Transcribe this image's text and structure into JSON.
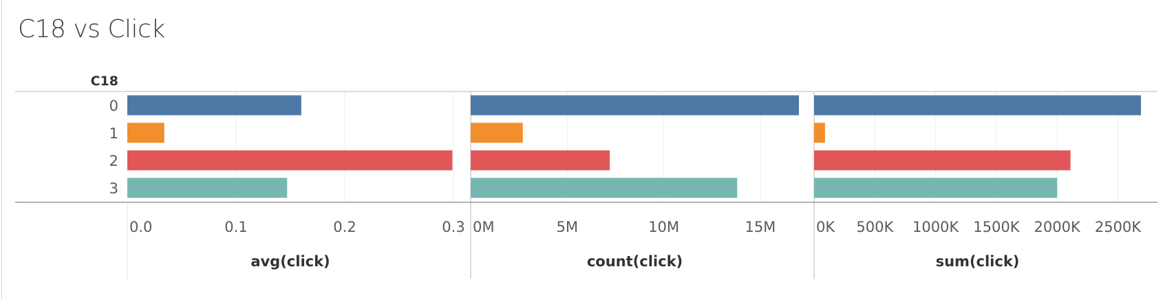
{
  "dashboard": {
    "title": "C18 vs Click"
  },
  "colors": {
    "0": "#4e79a7",
    "1": "#f28e2b",
    "2": "#e15759",
    "3": "#76b7b2"
  },
  "chart_data": {
    "type": "bar",
    "orientation": "horizontal",
    "dimension_label": "C18",
    "categories": [
      "0",
      "1",
      "2",
      "3"
    ],
    "grid": true,
    "panels": [
      {
        "measure": "avg(click)",
        "xlabel": "avg(click)",
        "values": [
          0.16,
          0.034,
          0.299,
          0.147
        ],
        "xlim": [
          0,
          0.3
        ],
        "ticks": [
          0.0,
          0.1,
          0.2,
          0.3
        ],
        "tick_labels": [
          "0.0",
          "0.1",
          "0.2",
          "0.3"
        ]
      },
      {
        "measure": "count(click)",
        "xlabel": "count(click)",
        "values": [
          17000000,
          2700000,
          7200000,
          13800000
        ],
        "xlim": [
          0,
          17000000
        ],
        "ticks": [
          0,
          5000000,
          10000000,
          15000000
        ],
        "tick_labels": [
          "0M",
          "5M",
          "10M",
          "15M"
        ]
      },
      {
        "measure": "sum(click)",
        "xlabel": "sum(click)",
        "values": [
          2690000,
          90000,
          2110000,
          2000000
        ],
        "xlim": [
          0,
          2690000
        ],
        "ticks": [
          0,
          500000,
          1000000,
          1500000,
          2000000,
          2500000
        ],
        "tick_labels": [
          "0K",
          "500K",
          "1000K",
          "1500K",
          "2000K",
          "2500K"
        ]
      }
    ]
  }
}
